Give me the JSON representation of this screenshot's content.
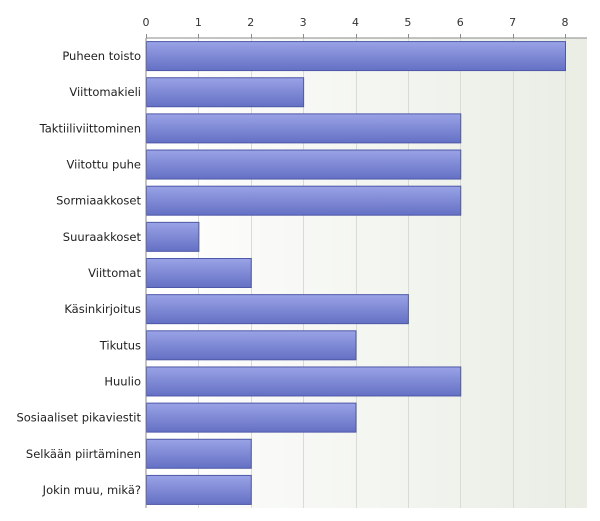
{
  "chart_data": {
    "type": "bar",
    "orientation": "horizontal",
    "title": "",
    "xlabel": "",
    "ylabel": "",
    "xlim": [
      0,
      8.5
    ],
    "ticks": [
      0,
      1,
      2,
      3,
      4,
      5,
      6,
      7,
      8
    ],
    "tick_labels": [
      "0",
      "1",
      "2",
      "3",
      "4",
      "5",
      "6",
      "7",
      "8"
    ],
    "grid": true,
    "categories": [
      "Puheen toisto",
      "Viittomakieli",
      "Taktiiliviittominen",
      "Viitottu puhe",
      "Sormiaakkoset",
      "Suuraakkoset",
      "Viittomat",
      "Käsinkirjoitus",
      "Tikutus",
      "Huulio",
      "Sosiaaliset pikaviestit",
      "Selkään piirtäminen",
      "Jokin muu, mikä?"
    ],
    "values": [
      8,
      3,
      6,
      6,
      6,
      1,
      2,
      5,
      4,
      6,
      4,
      2,
      2
    ],
    "colors": {
      "bar_top": "#9aa3e6",
      "bar_bottom": "#6470c4",
      "bar_stroke": "#4e58a8",
      "plot_bg_left": "#ffffff",
      "plot_bg_right": "#e9ede4",
      "grid": "#d8dcd2",
      "axis": "#8a8a8a"
    }
  }
}
